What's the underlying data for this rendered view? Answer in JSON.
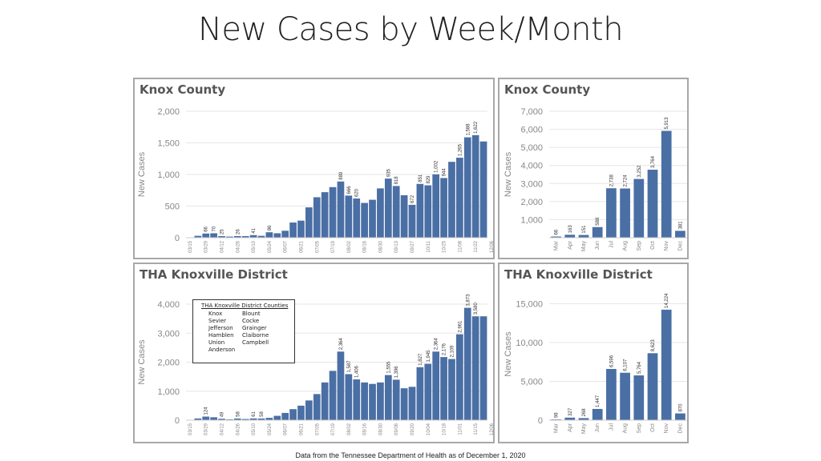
{
  "slide": {
    "title": "New Cases by Week/Month",
    "footer": "Data from the Tennessee Department of Health as of December 1, 2020"
  },
  "colors": {
    "bar": "#4a6fa5",
    "grid": "#e6e6e6",
    "tick": "#888888",
    "border": "#a8a8a8"
  },
  "legend": {
    "title": "THA Knoxville District Counties",
    "counties": [
      "Knox",
      "Blount",
      "Sevier",
      "Cocke",
      "Jefferson",
      "Grainger",
      "Hamblen",
      "Claiborne",
      "Union",
      "Campbell",
      "Anderson"
    ]
  },
  "chart_data": [
    {
      "type": "bar",
      "title": "Knox County",
      "ylabel": "New Cases",
      "ylim": [
        0,
        2000
      ],
      "yticks": [
        0,
        500,
        1000,
        1500,
        2000
      ],
      "ytick_labels": [
        "0",
        "500",
        "1,000",
        "1,500",
        "2,000"
      ],
      "categories": [
        "03/15",
        "03/22",
        "03/29",
        "04/05",
        "04/12",
        "04/19",
        "04/26",
        "05/03",
        "05/10",
        "05/17",
        "05/24",
        "05/31",
        "06/07",
        "06/14",
        "06/21",
        "06/28",
        "07/05",
        "07/12",
        "07/19",
        "07/26",
        "08/02",
        "08/09",
        "08/16",
        "08/23",
        "08/30",
        "09/06",
        "09/13",
        "09/20",
        "09/27",
        "10/04",
        "10/11",
        "10/18",
        "10/25",
        "11/01",
        "11/08",
        "11/15",
        "11/22",
        "11/29"
      ],
      "xtick_labels": [
        "03/15",
        "",
        "03/29",
        "",
        "04/12",
        "",
        "04/26",
        "",
        "05/10",
        "",
        "05/24",
        "",
        "06/07",
        "",
        "06/21",
        "",
        "07/05",
        "",
        "07/19",
        "",
        "08/02",
        "",
        "08/16",
        "",
        "08/30",
        "",
        "09/13",
        "",
        "09/27",
        "",
        "10/11",
        "",
        "10/25",
        "",
        "11/08",
        "",
        "11/22",
        ""
      ],
      "trailing_tick": "12/06",
      "values": [
        5,
        30,
        66,
        70,
        25,
        18,
        26,
        25,
        41,
        30,
        86,
        70,
        110,
        240,
        270,
        480,
        640,
        720,
        800,
        889,
        666,
        620,
        550,
        600,
        780,
        935,
        818,
        672,
        520,
        851,
        829,
        1002,
        944,
        1200,
        1265,
        1588,
        1622,
        1522
      ],
      "labeled": {
        "2": "66",
        "3": "70",
        "4": "25",
        "6": "26",
        "8": "41",
        "10": "86",
        "19": "889",
        "20": "666",
        "21": "620",
        "25": "935",
        "26": "818",
        "28": "672",
        "29": "851",
        "30": "829",
        "31": "1,002",
        "32": "944",
        "34": "1,265",
        "35": "1,588",
        "36": "1,622"
      }
    },
    {
      "type": "bar",
      "title": "Knox County",
      "ylabel": "New Cases",
      "ylim": [
        0,
        7000
      ],
      "yticks": [
        1000,
        2000,
        3000,
        4000,
        5000,
        6000,
        7000
      ],
      "ytick_labels": [
        "1,000",
        "2,000",
        "3,000",
        "4,000",
        "5,000",
        "6,000",
        "7,000"
      ],
      "categories": [
        "Mar",
        "Apr",
        "May",
        "Jun",
        "Jul",
        "Aug",
        "Sep",
        "Oct",
        "Nov",
        "Dec"
      ],
      "xtick_labels": [
        "Mar",
        "Apr",
        "May",
        "Jun",
        "Jul",
        "Aug",
        "Sep",
        "Oct",
        "Nov",
        "Dec"
      ],
      "values": [
        66,
        163,
        151,
        588,
        2738,
        2724,
        3252,
        3764,
        5913,
        381
      ],
      "labeled": {
        "0": "66",
        "1": "163",
        "2": "151",
        "3": "588",
        "4": "2,738",
        "5": "2,724",
        "6": "3,252",
        "7": "3,764",
        "8": "5,913",
        "9": "381"
      }
    },
    {
      "type": "bar",
      "title": "THA Knoxville District",
      "ylabel": "New Cases",
      "ylim": [
        0,
        4000
      ],
      "yticks": [
        0,
        1000,
        2000,
        3000,
        4000
      ],
      "ytick_labels": [
        "0",
        "1,000",
        "2,000",
        "3,000",
        "4,000"
      ],
      "categories": [
        "03/15",
        "03/22",
        "03/29",
        "04/05",
        "04/12",
        "04/19",
        "04/26",
        "05/03",
        "05/10",
        "05/17",
        "05/24",
        "05/31",
        "06/07",
        "06/14",
        "06/21",
        "06/28",
        "07/05",
        "07/12",
        "07/19",
        "07/26",
        "08/02",
        "08/09",
        "08/16",
        "08/23",
        "08/30",
        "09/06",
        "09/13",
        "09/20",
        "09/27",
        "10/04",
        "10/11",
        "10/18",
        "10/25",
        "11/01",
        "11/08",
        "11/15",
        "11/22",
        "11/29"
      ],
      "xtick_labels": [
        "03/15",
        "",
        "03/29",
        "",
        "04/12",
        "",
        "04/26",
        "",
        "05/10",
        "",
        "05/24",
        "",
        "06/07",
        "",
        "06/21",
        "",
        "07/05",
        "",
        "07/19",
        "",
        "08/02",
        "",
        "08/16",
        "",
        "08/30",
        "",
        "09/06",
        "",
        "09/20",
        "",
        "10/04",
        "",
        "10/18",
        "",
        "11/01",
        "",
        "11/15",
        ""
      ],
      "trailing_tick": "12/06",
      "values": [
        10,
        60,
        124,
        100,
        49,
        30,
        58,
        40,
        61,
        58,
        80,
        150,
        250,
        380,
        500,
        680,
        900,
        1300,
        1700,
        2364,
        1587,
        1406,
        1300,
        1250,
        1300,
        1555,
        1396,
        1100,
        1150,
        1827,
        1945,
        2364,
        2176,
        2109,
        2961,
        3873,
        3580,
        3580
      ],
      "labeled": {
        "2": "124",
        "4": "49",
        "6": "58",
        "8": "61",
        "9": "58",
        "19": "2,364",
        "20": "1,587",
        "21": "1,406",
        "25": "1,555",
        "26": "1,396",
        "29": "1,827",
        "30": "1,945",
        "31": "2,364",
        "32": "2,176",
        "33": "2,109",
        "34": "2,961",
        "35": "3,873",
        "36": "3,580"
      }
    },
    {
      "type": "bar",
      "title": "THA Knoxville District",
      "ylabel": "New Cases",
      "ylim": [
        0,
        17000
      ],
      "yticks": [
        0,
        5000,
        10000,
        15000
      ],
      "ytick_labels": [
        "0",
        "5,000",
        "10,000",
        "15,000"
      ],
      "categories": [
        "Mar",
        "Apr",
        "May",
        "Jun",
        "Jul",
        "Aug",
        "Sep",
        "Oct",
        "Nov",
        "Dec"
      ],
      "xtick_labels": [
        "Mar",
        "Apr",
        "May",
        "Jun",
        "Jul",
        "Aug",
        "Sep",
        "Oct",
        "Nov",
        "Dec"
      ],
      "values": [
        98,
        327,
        268,
        1447,
        6596,
        6107,
        5764,
        8623,
        14224,
        870
      ],
      "labeled": {
        "0": "98",
        "1": "327",
        "2": "268",
        "3": "1,447",
        "4": "6,596",
        "5": "6,107",
        "6": "5,764",
        "7": "8,623",
        "8": "14,224",
        "9": "870"
      }
    }
  ]
}
